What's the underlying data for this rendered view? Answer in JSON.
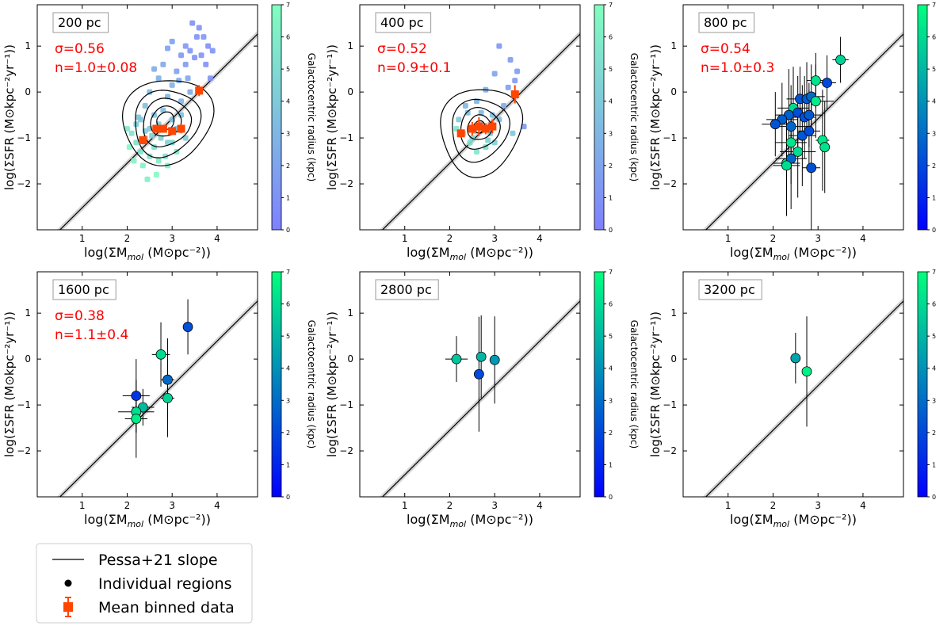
{
  "chart_data": {
    "type": "scatter",
    "shared": {
      "xlabel": "log(ΣM",
      "xlabel_sub": "mol",
      "xlabel_units": " (M⊙pc⁻²))",
      "ylabel": "log(ΣSFR (M⊙kpc⁻²yr⁻¹))",
      "xlim": [
        0,
        4.9
      ],
      "ylim": [
        -3,
        1.9
      ],
      "xticks": [
        1,
        2,
        3,
        4
      ],
      "yticks": [
        -2,
        -1,
        0,
        1
      ],
      "colorbar_label": "Galactocentric radius (kpc)",
      "colorbar_ticks": [
        0,
        1,
        2,
        3,
        4,
        5,
        6,
        7
      ],
      "colorbar_range": [
        0,
        7
      ],
      "reference_line": {
        "label": "Pessa+21 slope",
        "slope": 0.97,
        "intercept": -3.49,
        "band": 0.07
      }
    },
    "panels": [
      {
        "label": "200 pc",
        "sigma": "σ=0.56",
        "n": "n=1.0±0.08",
        "style": "dense",
        "with_errors": false,
        "contours": true,
        "points": [
          [
            3.45,
            1.5,
            1.0
          ],
          [
            3.6,
            1.4,
            1.0
          ],
          [
            3.7,
            1.2,
            1.2
          ],
          [
            3.8,
            1.0,
            0.8
          ],
          [
            3.55,
            1.2,
            1.0
          ],
          [
            3.9,
            0.9,
            1.0
          ],
          [
            3.3,
            1.0,
            1.3
          ],
          [
            3.4,
            0.9,
            1.2
          ],
          [
            3.5,
            0.75,
            1.0
          ],
          [
            3.65,
            0.8,
            1.1
          ],
          [
            3.0,
            1.1,
            1.7
          ],
          [
            3.2,
            0.8,
            1.4
          ],
          [
            3.3,
            0.6,
            1.5
          ],
          [
            3.1,
            0.45,
            1.8
          ],
          [
            2.9,
            0.95,
            1.9
          ],
          [
            3.35,
            0.3,
            2.1
          ],
          [
            3.15,
            0.25,
            2.2
          ],
          [
            3.75,
            0.6,
            1.0
          ],
          [
            3.85,
            0.3,
            1.1
          ],
          [
            3.4,
            0.0,
            2.3
          ],
          [
            2.7,
            0.3,
            2.6
          ],
          [
            2.6,
            0.5,
            2.5
          ],
          [
            2.8,
            0.6,
            2.3
          ],
          [
            3.0,
            0.15,
            2.7
          ],
          [
            2.9,
            -0.1,
            3.0
          ],
          [
            3.2,
            -0.2,
            2.9
          ],
          [
            2.5,
            0.0,
            3.2
          ],
          [
            2.4,
            -0.3,
            3.5
          ],
          [
            2.3,
            -0.6,
            3.9
          ],
          [
            2.2,
            -0.7,
            4.3
          ],
          [
            2.5,
            -0.8,
            4.1
          ],
          [
            2.6,
            -0.5,
            3.6
          ],
          [
            2.7,
            -0.7,
            3.8
          ],
          [
            2.8,
            -0.4,
            3.4
          ],
          [
            3.0,
            -0.6,
            3.6
          ],
          [
            3.1,
            -0.8,
            3.9
          ],
          [
            3.2,
            -0.5,
            3.3
          ],
          [
            3.3,
            -1.0,
            4.2
          ],
          [
            2.9,
            -1.1,
            4.5
          ],
          [
            2.6,
            -1.2,
            5.0
          ],
          [
            2.4,
            -1.0,
            4.8
          ],
          [
            2.2,
            -1.1,
            5.2
          ],
          [
            2.1,
            -0.9,
            5.5
          ],
          [
            2.0,
            -0.8,
            5.8
          ],
          [
            2.3,
            -1.3,
            5.6
          ],
          [
            2.5,
            -1.4,
            5.4
          ],
          [
            2.7,
            -1.5,
            5.9
          ],
          [
            2.9,
            -1.6,
            6.1
          ],
          [
            3.1,
            -1.3,
            5.7
          ],
          [
            2.35,
            -1.6,
            6.3
          ],
          [
            2.15,
            -1.5,
            6.5
          ],
          [
            2.05,
            -1.2,
            6.6
          ],
          [
            2.45,
            -1.9,
            6.2
          ],
          [
            2.65,
            -1.8,
            6.8
          ],
          [
            2.85,
            -1.4,
            5.2
          ],
          [
            3.0,
            -1.1,
            4.8
          ],
          [
            2.75,
            -1.0,
            4.6
          ],
          [
            2.55,
            -0.95,
            4.4
          ],
          [
            2.4,
            -0.85,
            4.2
          ],
          [
            2.25,
            -0.55,
            3.7
          ]
        ],
        "binned": {
          "x": [
            2.35,
            2.65,
            2.8,
            3.0,
            3.2,
            3.6
          ],
          "y": [
            -1.05,
            -0.8,
            -0.8,
            -0.85,
            -0.8,
            0.03
          ],
          "err": [
            0.06,
            0.05,
            0.05,
            0.06,
            0.1,
            0.12
          ]
        }
      },
      {
        "label": "400 pc",
        "sigma": "σ=0.52",
        "n": "n=0.9±0.1",
        "style": "dense",
        "with_errors": false,
        "contours": true,
        "points": [
          [
            3.1,
            1.0,
            1.2
          ],
          [
            3.35,
            0.7,
            1.5
          ],
          [
            3.45,
            0.25,
            1.4
          ],
          [
            3.5,
            0.45,
            1.6
          ],
          [
            3.3,
            0.1,
            1.8
          ],
          [
            3.0,
            0.4,
            1.9
          ],
          [
            2.8,
            0.05,
            2.6
          ],
          [
            2.6,
            -0.2,
            3.0
          ],
          [
            2.4,
            -0.45,
            3.4
          ],
          [
            2.2,
            -0.6,
            4.0
          ],
          [
            2.3,
            -0.9,
            4.8
          ],
          [
            2.5,
            -1.0,
            4.6
          ],
          [
            2.7,
            -0.7,
            3.5
          ],
          [
            2.9,
            -0.9,
            3.9
          ],
          [
            3.1,
            -0.6,
            3.3
          ],
          [
            2.6,
            -1.3,
            5.6
          ],
          [
            2.45,
            -1.1,
            5.2
          ],
          [
            2.8,
            -1.2,
            5.0
          ],
          [
            3.0,
            -1.1,
            4.4
          ],
          [
            2.15,
            -0.8,
            5.5
          ],
          [
            3.2,
            -0.3,
            2.4
          ],
          [
            3.65,
            -0.75,
            1.5
          ],
          [
            2.35,
            -0.3,
            3.0
          ],
          [
            2.7,
            -0.45,
            3.1
          ],
          [
            2.95,
            -0.5,
            3.4
          ],
          [
            3.4,
            -0.9,
            3.9
          ],
          [
            2.55,
            -0.85,
            4.1
          ],
          [
            2.85,
            -1.05,
            4.5
          ]
        ],
        "binned": {
          "x": [
            2.25,
            2.5,
            2.65,
            2.8,
            2.95,
            3.45
          ],
          "y": [
            -0.9,
            -0.8,
            -0.75,
            -0.8,
            -0.75,
            -0.05
          ],
          "err": [
            0.1,
            0.15,
            0.2,
            0.12,
            0.15,
            0.2
          ]
        }
      },
      {
        "label": "800 pc",
        "sigma": "σ=0.54",
        "n": "n=1.0±0.3",
        "style": "errors",
        "with_errors": true,
        "contours": false,
        "points": [
          [
            3.5,
            0.7,
            5.8
          ],
          [
            2.95,
            0.25,
            6.3
          ],
          [
            3.2,
            0.2,
            2.0
          ],
          [
            2.6,
            -0.15,
            2.3
          ],
          [
            2.75,
            -0.15,
            2.5
          ],
          [
            2.85,
            -0.1,
            3.0
          ],
          [
            2.95,
            -0.2,
            6.5
          ],
          [
            2.45,
            -0.35,
            6.0
          ],
          [
            2.35,
            -0.5,
            2.6
          ],
          [
            2.55,
            -0.45,
            2.1
          ],
          [
            2.7,
            -0.55,
            2.2
          ],
          [
            2.8,
            -0.5,
            2.5
          ],
          [
            2.2,
            -0.6,
            2.6
          ],
          [
            2.05,
            -0.7,
            2.3
          ],
          [
            2.4,
            -0.75,
            2.8
          ],
          [
            2.65,
            -0.95,
            2.4
          ],
          [
            2.8,
            -0.85,
            2.1
          ],
          [
            3.1,
            -1.05,
            6.4
          ],
          [
            2.4,
            -1.1,
            6.3
          ],
          [
            2.55,
            -1.3,
            6.1
          ],
          [
            3.15,
            -1.2,
            6.2
          ],
          [
            2.3,
            -1.55,
            6.5
          ],
          [
            2.4,
            -1.45,
            2.8
          ],
          [
            2.85,
            -1.65,
            2.2
          ],
          [
            2.3,
            -1.6,
            6.0
          ]
        ],
        "errors": [
          [
            0.18,
            0.5
          ],
          [
            0.2,
            0.6
          ],
          [
            0.2,
            0.6
          ],
          [
            0.3,
            0.7
          ],
          [
            0.25,
            0.8
          ],
          [
            0.3,
            0.7
          ],
          [
            0.4,
            0.8
          ],
          [
            0.35,
            0.9
          ],
          [
            0.3,
            1.0
          ],
          [
            0.2,
            0.8
          ],
          [
            0.25,
            0.9
          ],
          [
            0.3,
            0.7
          ],
          [
            0.35,
            0.8
          ],
          [
            0.3,
            0.7
          ],
          [
            0.45,
            0.9
          ],
          [
            0.3,
            1.1
          ],
          [
            0.25,
            0.9
          ],
          [
            0.15,
            1.1
          ],
          [
            0.35,
            0.9
          ],
          [
            0.4,
            1.0
          ],
          [
            0.1,
            1.0
          ],
          [
            0.3,
            1.0
          ],
          [
            0.35,
            1.1
          ],
          [
            0.2,
            1.4
          ],
          [
            0.3,
            1.1
          ]
        ]
      },
      {
        "label": "1600 pc",
        "sigma": "σ=0.38",
        "n": "n=1.1±0.4",
        "style": "errors",
        "with_errors": true,
        "contours": false,
        "points": [
          [
            3.35,
            0.7,
            2.2
          ],
          [
            2.75,
            0.1,
            6.0
          ],
          [
            2.9,
            -0.45,
            2.9
          ],
          [
            2.2,
            -0.8,
            1.5
          ],
          [
            2.9,
            -0.85,
            5.8
          ],
          [
            2.35,
            -1.05,
            5.2
          ],
          [
            2.2,
            -1.15,
            6.1
          ],
          [
            2.2,
            -1.3,
            6.5
          ]
        ],
        "errors": [
          [
            0.1,
            0.6
          ],
          [
            0.2,
            0.7
          ],
          [
            0.15,
            0.9
          ],
          [
            0.3,
            0.8
          ],
          [
            0.15,
            0.85
          ],
          [
            0.25,
            0.4
          ],
          [
            0.4,
            0.45
          ],
          [
            0.25,
            0.85
          ]
        ]
      },
      {
        "label": "2800 pc",
        "sigma": "",
        "n": "",
        "style": "errors",
        "with_errors": true,
        "contours": false,
        "points": [
          [
            2.15,
            0.0,
            5.4
          ],
          [
            2.7,
            0.05,
            5.0
          ],
          [
            3.0,
            -0.02,
            4.2
          ],
          [
            2.65,
            -0.33,
            2.0
          ]
        ],
        "errors": [
          [
            0.25,
            0.5
          ],
          [
            0.1,
            0.9
          ],
          [
            0.1,
            0.95
          ],
          [
            0.0,
            1.25
          ]
        ]
      },
      {
        "label": "3200 pc",
        "sigma": "",
        "n": "",
        "style": "errors",
        "with_errors": true,
        "contours": false,
        "points": [
          [
            2.5,
            0.02,
            4.5
          ],
          [
            2.75,
            -0.27,
            6.6
          ]
        ],
        "errors": [
          [
            0.0,
            0.55
          ],
          [
            0.0,
            1.2
          ]
        ]
      }
    ],
    "legend": {
      "position": "bottom-left",
      "entries": [
        {
          "label": "Pessa+21 slope",
          "marker": "line"
        },
        {
          "label": "Individual regions",
          "marker": "dot"
        },
        {
          "label": "Mean binned data",
          "marker": "errorbar-square"
        }
      ]
    }
  }
}
